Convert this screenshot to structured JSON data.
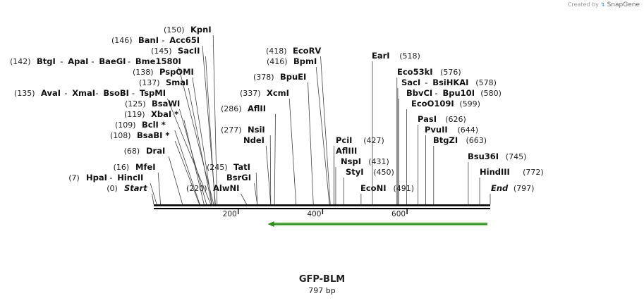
{
  "credit": {
    "prefix": "Created by",
    "brand": "SnapGene"
  },
  "map": {
    "name": "GFP-BLM",
    "length_label": "797 bp",
    "length_bp": 797,
    "ruler_ticks": [
      {
        "bp": 200,
        "label": "200"
      },
      {
        "bp": 400,
        "label": "400"
      },
      {
        "bp": 600,
        "label": "600"
      }
    ],
    "feature": {
      "start": 270,
      "end": 797,
      "direction": "reverse",
      "color": "#2e8b1e"
    },
    "sites": [
      {
        "pos": 0,
        "pos_label": "(0)",
        "names": [
          "Start"
        ],
        "italic": true
      },
      {
        "pos": 7,
        "pos_label": "(7)",
        "names": [
          "HpaI",
          "HincII"
        ]
      },
      {
        "pos": 16,
        "pos_label": "(16)",
        "names": [
          "MfeI"
        ]
      },
      {
        "pos": 68,
        "pos_label": "(68)",
        "names": [
          "DraI"
        ]
      },
      {
        "pos": 108,
        "pos_label": "(108)",
        "names": [
          "BsaBI *"
        ]
      },
      {
        "pos": 109,
        "pos_label": "(109)",
        "names": [
          "BclI *"
        ]
      },
      {
        "pos": 119,
        "pos_label": "(119)",
        "names": [
          "XbaI *"
        ]
      },
      {
        "pos": 125,
        "pos_label": "(125)",
        "names": [
          "BsaWI"
        ]
      },
      {
        "pos": 135,
        "pos_label": "(135)",
        "names": [
          "AvaI",
          "XmaI",
          "BsoBI",
          "TspMI"
        ]
      },
      {
        "pos": 137,
        "pos_label": "(137)",
        "names": [
          "SmaI"
        ]
      },
      {
        "pos": 138,
        "pos_label": "(138)",
        "names": [
          "PspOMI"
        ]
      },
      {
        "pos": 142,
        "pos_label": "(142)",
        "names": [
          "BtgI",
          "ApaI",
          "BaeGI",
          "Bme1580I"
        ]
      },
      {
        "pos": 145,
        "pos_label": "(145)",
        "names": [
          "SacII"
        ]
      },
      {
        "pos": 146,
        "pos_label": "(146)",
        "names": [
          "BanI",
          "Acc65I"
        ]
      },
      {
        "pos": 150,
        "pos_label": "(150)",
        "names": [
          "KpnI"
        ]
      },
      {
        "pos": 220,
        "pos_label": "(220)",
        "names": [
          "AlwNI"
        ]
      },
      {
        "pos": 245,
        "pos_label": "(245)",
        "names": [
          "TatI"
        ]
      },
      {
        "pos": 245,
        "pos_label": "",
        "names": [
          "BsrGI"
        ]
      },
      {
        "pos": 277,
        "pos_label": "(277)",
        "names": [
          "NsiI"
        ]
      },
      {
        "pos": 277,
        "pos_label": "",
        "names": [
          "NdeI"
        ]
      },
      {
        "pos": 286,
        "pos_label": "(286)",
        "names": [
          "AflII"
        ]
      },
      {
        "pos": 337,
        "pos_label": "(337)",
        "names": [
          "XcmI"
        ]
      },
      {
        "pos": 378,
        "pos_label": "(378)",
        "names": [
          "BpuEI"
        ]
      },
      {
        "pos": 416,
        "pos_label": "(416)",
        "names": [
          "BpmI"
        ]
      },
      {
        "pos": 418,
        "pos_label": "(418)",
        "names": [
          "EcoRV"
        ]
      },
      {
        "pos": 427,
        "pos_label": "(427)",
        "names": [
          "PciI"
        ]
      },
      {
        "pos": 427,
        "pos_label": "",
        "names": [
          "AflIII"
        ]
      },
      {
        "pos": 431,
        "pos_label": "(431)",
        "names": [
          "NspI"
        ]
      },
      {
        "pos": 450,
        "pos_label": "(450)",
        "names": [
          "StyI"
        ]
      },
      {
        "pos": 491,
        "pos_label": "(491)",
        "names": [
          "EcoNI"
        ]
      },
      {
        "pos": 518,
        "pos_label": "(518)",
        "names": [
          "EarI"
        ]
      },
      {
        "pos": 576,
        "pos_label": "(576)",
        "names": [
          "Eco53kI"
        ]
      },
      {
        "pos": 578,
        "pos_label": "(578)",
        "names": [
          "SacI",
          "BsiHKAI"
        ]
      },
      {
        "pos": 580,
        "pos_label": "(580)",
        "names": [
          "BbvCI",
          "Bpu10I"
        ]
      },
      {
        "pos": 599,
        "pos_label": "(599)",
        "names": [
          "EcoO109I"
        ]
      },
      {
        "pos": 626,
        "pos_label": "(626)",
        "names": [
          "PasI"
        ]
      },
      {
        "pos": 644,
        "pos_label": "(644)",
        "names": [
          "PvuII"
        ]
      },
      {
        "pos": 663,
        "pos_label": "(663)",
        "names": [
          "BtgZI"
        ]
      },
      {
        "pos": 745,
        "pos_label": "(745)",
        "names": [
          "Bsu36I"
        ]
      },
      {
        "pos": 772,
        "pos_label": "(772)",
        "names": [
          "HindIII"
        ]
      },
      {
        "pos": 797,
        "pos_label": "(797)",
        "names": [
          "End"
        ],
        "italic": true
      }
    ]
  }
}
